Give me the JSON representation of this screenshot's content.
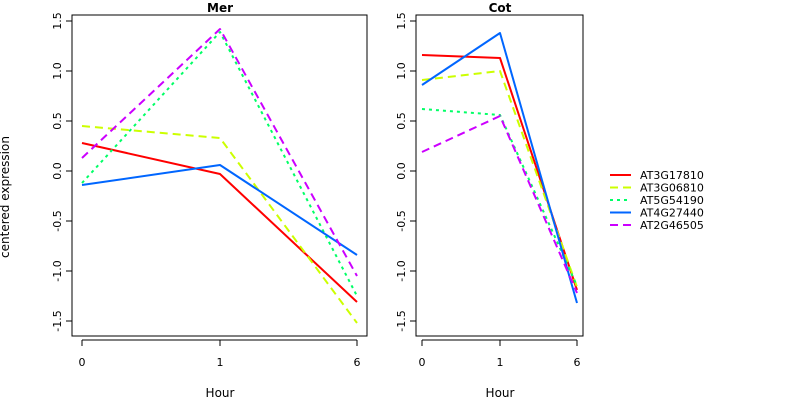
{
  "chart_data": {
    "type": "line",
    "ylabel": "centered expression",
    "xlabel": "Hour",
    "x_categories": [
      "0",
      "1",
      "6"
    ],
    "ylim": [
      -1.6,
      1.55
    ],
    "yticks": [
      -1.5,
      -1.0,
      -0.5,
      0.0,
      0.5,
      1.0,
      1.5
    ],
    "ytick_labels": [
      "-1.5",
      "-1.0",
      "-0.5",
      "0.0",
      "0.5",
      "1.0",
      "1.5"
    ],
    "legend_position": "right",
    "series_styles": [
      {
        "name": "AT3G17810",
        "color": "#ff0000",
        "dash": "solid"
      },
      {
        "name": "AT3G06810",
        "color": "#ccff00",
        "dash": "dashed"
      },
      {
        "name": "AT5G54190",
        "color": "#00ff66",
        "dash": "dotted"
      },
      {
        "name": "AT4G27440",
        "color": "#0066ff",
        "dash": "solid"
      },
      {
        "name": "AT2G46505",
        "color": "#cc00ff",
        "dash": "dashed"
      }
    ],
    "panels": [
      {
        "title": "Mer",
        "series": [
          {
            "name": "AT3G17810",
            "values": [
              0.28,
              -0.03,
              -1.31
            ]
          },
          {
            "name": "AT3G06810",
            "values": [
              0.45,
              0.33,
              -1.52
            ]
          },
          {
            "name": "AT5G54190",
            "values": [
              -0.12,
              1.39,
              -1.25
            ]
          },
          {
            "name": "AT4G27440",
            "values": [
              -0.14,
              0.06,
              -0.84
            ]
          },
          {
            "name": "AT2G46505",
            "values": [
              0.13,
              1.42,
              -1.05
            ]
          }
        ]
      },
      {
        "title": "Cot",
        "series": [
          {
            "name": "AT3G17810",
            "values": [
              1.16,
              1.13,
              -1.19
            ]
          },
          {
            "name": "AT3G06810",
            "values": [
              0.91,
              1.0,
              -1.16
            ]
          },
          {
            "name": "AT5G54190",
            "values": [
              0.62,
              0.56,
              -1.15
            ]
          },
          {
            "name": "AT4G27440",
            "values": [
              0.86,
              1.38,
              -1.32
            ]
          },
          {
            "name": "AT2G46505",
            "values": [
              0.19,
              0.55,
              -1.22
            ]
          }
        ]
      }
    ]
  }
}
